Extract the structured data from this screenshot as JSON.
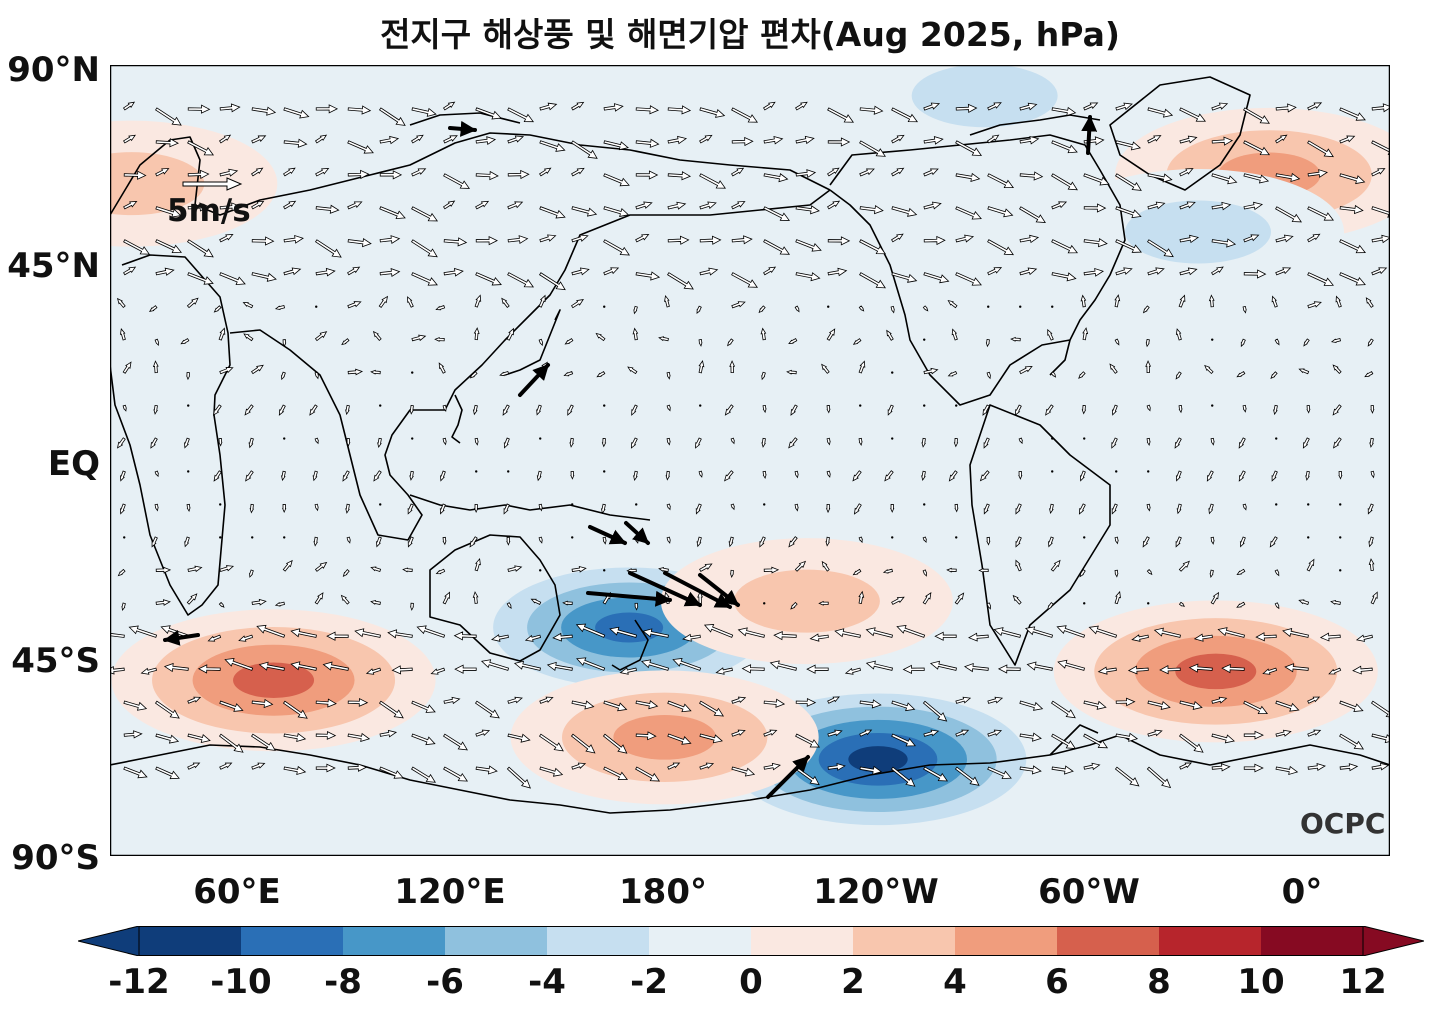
{
  "title": "전지구 해상풍 및 해면기압 편차(Aug 2025, hPa)",
  "lat_labels": [
    "90°N",
    "45°N",
    "EQ",
    "45°S",
    "90°S"
  ],
  "lon_labels": [
    "60°E",
    "120°E",
    "180°",
    "120°W",
    "60°W",
    "0°"
  ],
  "reference_vector": "5m/s",
  "watermark": "OCPC",
  "colorbar": {
    "ticks": [
      "-12",
      "-10",
      "-8",
      "-6",
      "-4",
      "-2",
      "0",
      "2",
      "4",
      "6",
      "8",
      "10",
      "12"
    ],
    "colors": [
      "#0f3d7a",
      "#2a6fb6",
      "#4797c8",
      "#8fc1de",
      "#c6dff0",
      "#e7f0f5",
      "#fae8e1",
      "#f8c6ae",
      "#f09d7d",
      "#d6604d",
      "#b7252c",
      "#860a22"
    ],
    "extend": "both"
  },
  "chart_data": {
    "type": "map",
    "title": "전지구 해상풍 및 해면기압 편차(Aug 2025, hPa)",
    "projection": "plate-carree",
    "lon_range": [
      24,
      384
    ],
    "lat_range": [
      -90,
      90
    ],
    "lat_ticks": [
      90,
      45,
      0,
      -45,
      -90
    ],
    "lon_ticks": [
      60,
      120,
      180,
      240,
      300,
      360
    ],
    "field": "sea level pressure anomaly",
    "units": "hPa",
    "levels": [
      -12,
      -10,
      -8,
      -6,
      -4,
      -2,
      0,
      2,
      4,
      6,
      8,
      10,
      12
    ],
    "vector_field": "surface wind anomaly",
    "reference_vector_ms": 5,
    "anomaly_centers": [
      {
        "lon": 70,
        "lat": -50,
        "value": 7
      },
      {
        "lon": 170,
        "lat": -38,
        "value": -9
      },
      {
        "lon": 240,
        "lat": -68,
        "value": -11
      },
      {
        "lon": 335,
        "lat": -48,
        "value": 7
      },
      {
        "lon": 180,
        "lat": -63,
        "value": 5
      },
      {
        "lon": 350,
        "lat": 65,
        "value": 5
      },
      {
        "lon": 330,
        "lat": 52,
        "value": -4
      },
      {
        "lon": 220,
        "lat": -32,
        "value": 3
      },
      {
        "lon": 30,
        "lat": 63,
        "value": 3
      },
      {
        "lon": 270,
        "lat": 83,
        "value": -3
      }
    ]
  }
}
